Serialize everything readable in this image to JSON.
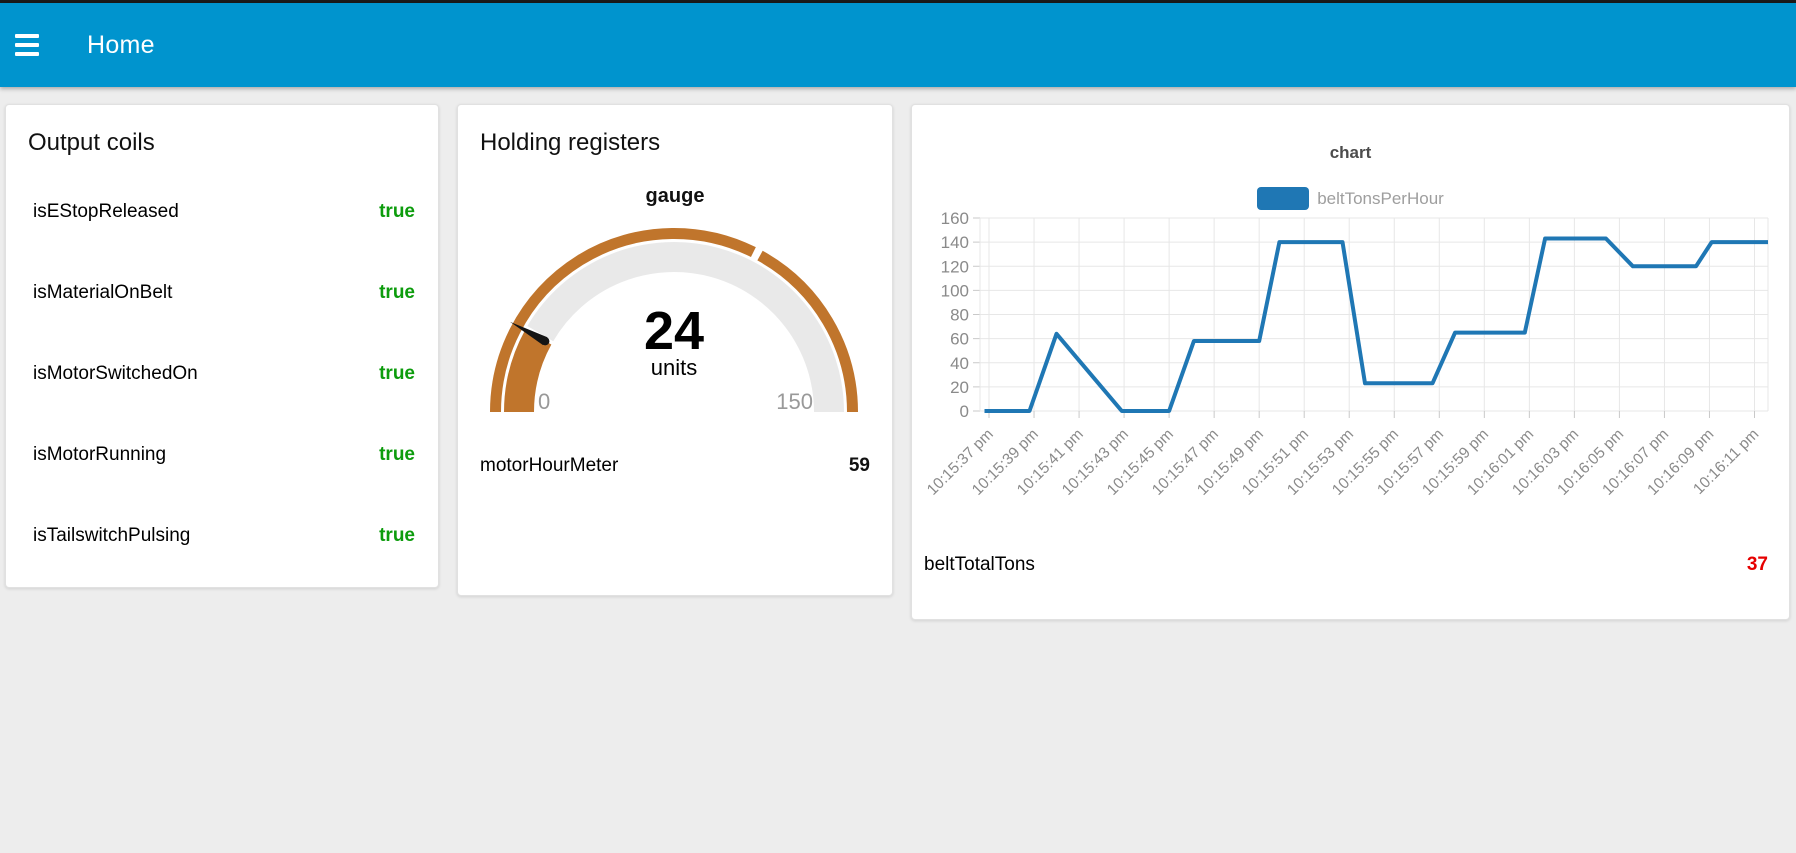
{
  "header": {
    "title": "Home",
    "bg_color": "#0094ce"
  },
  "output_coils": {
    "title": "Output coils",
    "true_color": "#0d9c0d",
    "rows": [
      {
        "label": "isEStopReleased",
        "value": "true"
      },
      {
        "label": "isMaterialOnBelt",
        "value": "true"
      },
      {
        "label": "isMotorSwitchedOn",
        "value": "true"
      },
      {
        "label": "isMotorRunning",
        "value": "true"
      },
      {
        "label": "isTailswitchPulsing",
        "value": "true"
      }
    ]
  },
  "holding_registers": {
    "title": "Holding registers",
    "gauge": {
      "label": "gauge",
      "value": "24",
      "value_num": 24,
      "units": "units",
      "min": 0,
      "max": 150,
      "min_label": "0",
      "max_label": "150",
      "ring_gap_value": 98,
      "arc_color": "#c0752c",
      "track_color": "#e9e9e9",
      "needle_color": "#141414",
      "label_color": "#999999"
    },
    "rows": [
      {
        "label": "motorHourMeter",
        "value": "59"
      }
    ]
  },
  "chart_card": {
    "rows": [
      {
        "label": "beltTotalTons",
        "value": "37",
        "value_color": "#e60000"
      }
    ]
  },
  "chart_data": {
    "type": "line",
    "title": "chart",
    "legend_position": "top",
    "grid": true,
    "axis_text_color": "#8a8a8a",
    "grid_color": "#e7e7e7",
    "tick_color": "#c9c9c9",
    "x_unit": "seconds after 10:15:00 pm",
    "x_domain": [
      36.6,
      71.6
    ],
    "ylim": [
      0,
      160
    ],
    "y_ticks": [
      0,
      20,
      40,
      60,
      80,
      100,
      120,
      140,
      160
    ],
    "x_ticks": [
      {
        "t": 37,
        "label": "10:15:37 pm"
      },
      {
        "t": 39,
        "label": "10:15:39 pm"
      },
      {
        "t": 41,
        "label": "10:15:41 pm"
      },
      {
        "t": 43,
        "label": "10:15:43 pm"
      },
      {
        "t": 45,
        "label": "10:15:45 pm"
      },
      {
        "t": 47,
        "label": "10:15:47 pm"
      },
      {
        "t": 49,
        "label": "10:15:49 pm"
      },
      {
        "t": 51,
        "label": "10:15:51 pm"
      },
      {
        "t": 53,
        "label": "10:15:53 pm"
      },
      {
        "t": 55,
        "label": "10:15:55 pm"
      },
      {
        "t": 57,
        "label": "10:15:57 pm"
      },
      {
        "t": 59,
        "label": "10:15:59 pm"
      },
      {
        "t": 61,
        "label": "10:16:01 pm"
      },
      {
        "t": 63,
        "label": "10:16:03 pm"
      },
      {
        "t": 65,
        "label": "10:16:05 pm"
      },
      {
        "t": 67,
        "label": "10:16:07 pm"
      },
      {
        "t": 69,
        "label": "10:16:09 pm"
      },
      {
        "t": 71,
        "label": "10:16:11 pm"
      }
    ],
    "series": [
      {
        "name": "beltTonsPerHour",
        "color": "#1f77b4",
        "points": [
          [
            36.8,
            0
          ],
          [
            38.8,
            0
          ],
          [
            40,
            64
          ],
          [
            42.9,
            0
          ],
          [
            45,
            0
          ],
          [
            46.1,
            58
          ],
          [
            49,
            58
          ],
          [
            49.9,
            140
          ],
          [
            52.7,
            140
          ],
          [
            53.7,
            23
          ],
          [
            56.7,
            23
          ],
          [
            57.7,
            65
          ],
          [
            60.8,
            65
          ],
          [
            61.7,
            143
          ],
          [
            64.4,
            143
          ],
          [
            65.6,
            120
          ],
          [
            68.4,
            120
          ],
          [
            69.1,
            140
          ],
          [
            71.6,
            140
          ]
        ]
      }
    ]
  }
}
